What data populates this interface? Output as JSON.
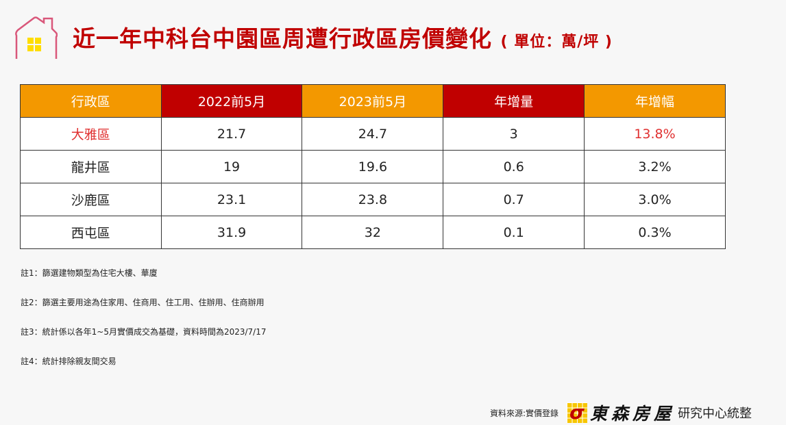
{
  "title": {
    "main": "近一年中科台中園區周遭行政區房價變化",
    "unit": "( 單位：萬/坪 )"
  },
  "colors": {
    "orange": "#f39800",
    "red": "#c00000",
    "highlight": "#e03030",
    "window": "#ffdd00",
    "house_outline": "#d9577a"
  },
  "table": {
    "headers": [
      "行政區",
      "2022前5月",
      "2023前5月",
      "年增量",
      "年增幅"
    ],
    "rows": [
      [
        "大雅區",
        "21.7",
        "24.7",
        "3",
        "13.8%"
      ],
      [
        "龍井區",
        "19",
        "19.6",
        "0.6",
        "3.2%"
      ],
      [
        "沙鹿區",
        "23.1",
        "23.8",
        "0.7",
        "3.0%"
      ],
      [
        "西屯區",
        "31.9",
        "32",
        "0.1",
        "0.3%"
      ]
    ]
  },
  "notes": [
    "註1：篩選建物類型為住宅大樓、華廈",
    "註2：篩選主要用途為住家用、住商用、住工用、住辦用、住商辦用",
    "註3：統計係以各年1~5月實價成交為基礎，資料時間為2023/7/17",
    "註4：統計排除親友間交易"
  ],
  "footer": {
    "source": "資料來源:實價登錄",
    "brand": "東森房屋",
    "dept": "研究中心統整"
  }
}
